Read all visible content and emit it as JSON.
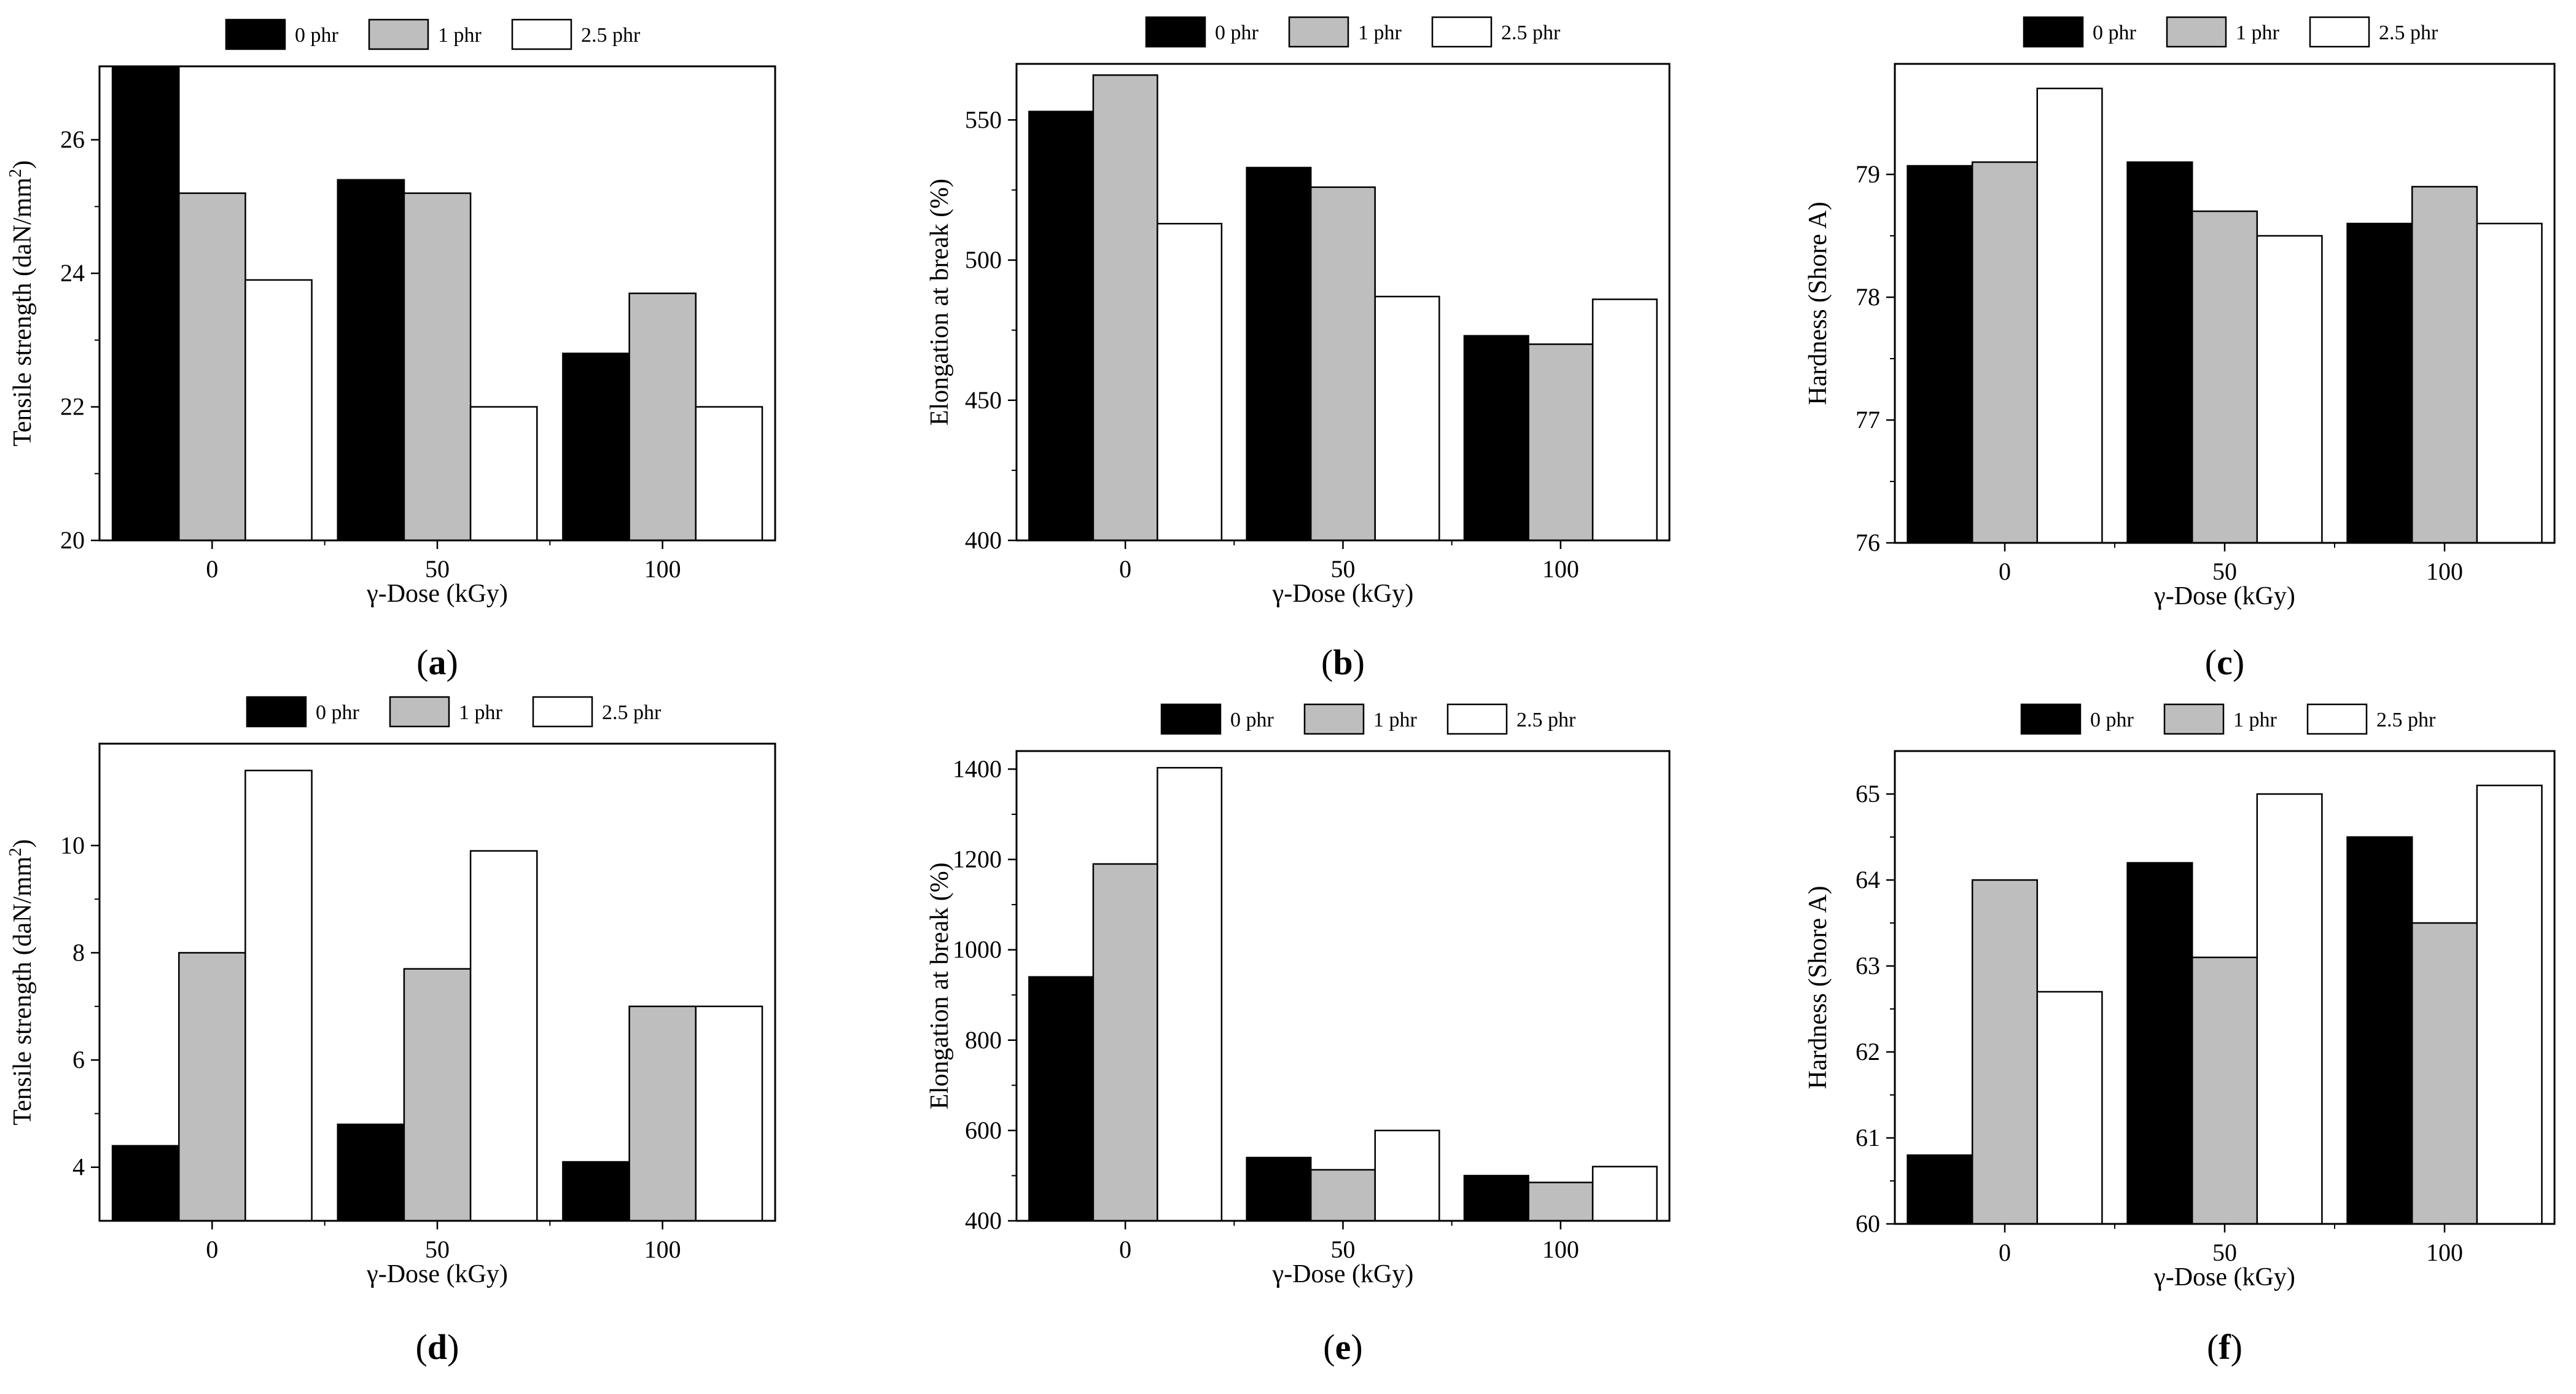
{
  "legend_colors": [
    "#000000",
    "#bebebe",
    "#ffffff"
  ],
  "chart_data": [
    {
      "panel": "(a)",
      "type": "bar",
      "categories": [
        "0",
        "50",
        "100"
      ],
      "series": [
        {
          "name": "0 phr",
          "values": [
            27.1,
            25.4,
            22.8
          ]
        },
        {
          "name": "1 phr",
          "values": [
            25.2,
            25.2,
            23.7
          ]
        },
        {
          "name": "2.5 phr",
          "values": [
            23.9,
            22.0,
            22.0
          ]
        }
      ],
      "xlabel": "γ-Dose (kGy)",
      "ylabel": "Tensile strength (daN/mm",
      "ylabel_sup": "2",
      "ylabel_end": ")",
      "ylim": [
        20,
        27.1
      ],
      "yticks": [
        20,
        22,
        24,
        26
      ],
      "ytick_labels": [
        "20",
        "22",
        "24",
        "26"
      ],
      "legend_position": "top"
    },
    {
      "panel": "(b)",
      "type": "bar",
      "categories": [
        "0",
        "50",
        "100"
      ],
      "series": [
        {
          "name": "0 phr",
          "values": [
            553,
            533,
            473
          ]
        },
        {
          "name": "1 phr",
          "values": [
            566,
            526,
            470
          ]
        },
        {
          "name": "2.5 phr",
          "values": [
            513,
            487,
            486
          ]
        }
      ],
      "xlabel": "γ-Dose (kGy)",
      "ylabel": "Elongation at break (%)",
      "ylim": [
        400,
        570
      ],
      "yticks": [
        400,
        450,
        500,
        550
      ],
      "ytick_labels": [
        "400",
        "450",
        "500",
        "550"
      ],
      "legend_position": "top"
    },
    {
      "panel": "(c)",
      "type": "bar",
      "categories": [
        "0",
        "50",
        "100"
      ],
      "series": [
        {
          "name": "0 phr",
          "values": [
            79.07,
            79.1,
            78.6
          ]
        },
        {
          "name": "1 phr",
          "values": [
            79.1,
            78.7,
            78.9
          ]
        },
        {
          "name": "2.5 phr",
          "values": [
            79.7,
            78.5,
            78.6
          ]
        }
      ],
      "xlabel": "γ-Dose (kGy)",
      "ylabel": "Hardness (Shore A)",
      "ylim": [
        76,
        79.9
      ],
      "yticks": [
        76,
        77,
        78,
        79
      ],
      "ytick_labels": [
        "76",
        "77",
        "78",
        "79"
      ],
      "legend_position": "top"
    },
    {
      "panel": "(d)",
      "type": "bar",
      "categories": [
        "0",
        "50",
        "100"
      ],
      "series": [
        {
          "name": "0 phr",
          "values": [
            4.4,
            4.8,
            4.1
          ]
        },
        {
          "name": "1 phr",
          "values": [
            8.0,
            7.7,
            7.0
          ]
        },
        {
          "name": "2.5 phr",
          "values": [
            11.4,
            9.9,
            7.0
          ]
        }
      ],
      "xlabel": "γ-Dose (kGy)",
      "ylabel": "Tensile strength (daN/mm",
      "ylabel_sup": "2",
      "ylabel_end": ")",
      "ylim": [
        3,
        11.9
      ],
      "yticks": [
        4,
        6,
        8,
        10
      ],
      "ytick_labels": [
        "4",
        "6",
        "8",
        "10"
      ],
      "legend_position": "top"
    },
    {
      "panel": "(e)",
      "type": "bar",
      "categories": [
        "0",
        "50",
        "100"
      ],
      "series": [
        {
          "name": "0 phr",
          "values": [
            940,
            540,
            500
          ]
        },
        {
          "name": "1 phr",
          "values": [
            1190,
            513,
            485
          ]
        },
        {
          "name": "2.5 phr",
          "values": [
            1403,
            600,
            520
          ]
        }
      ],
      "xlabel": "γ-Dose (kGy)",
      "ylabel": "Elongation at break (%)",
      "ylim": [
        400,
        1440
      ],
      "yticks": [
        400,
        600,
        800,
        1000,
        1200,
        1400
      ],
      "ytick_labels": [
        "400",
        "600",
        "800",
        "1000",
        "1200",
        "1400"
      ],
      "legend_position": "top"
    },
    {
      "panel": "(f)",
      "type": "bar",
      "categories": [
        "0",
        "50",
        "100"
      ],
      "series": [
        {
          "name": "0 phr",
          "values": [
            60.8,
            64.2,
            64.5
          ]
        },
        {
          "name": "1 phr",
          "values": [
            64.0,
            63.1,
            63.5
          ]
        },
        {
          "name": "2.5 phr",
          "values": [
            62.7,
            65.0,
            65.1
          ]
        }
      ],
      "xlabel": "γ-Dose (kGy)",
      "ylabel": "Hardness (Shore A)",
      "ylim": [
        60,
        65.5
      ],
      "yticks": [
        60,
        61,
        62,
        63,
        64,
        65
      ],
      "ytick_labels": [
        "60",
        "61",
        "62",
        "63",
        "64",
        "65"
      ],
      "legend_position": "top"
    }
  ]
}
